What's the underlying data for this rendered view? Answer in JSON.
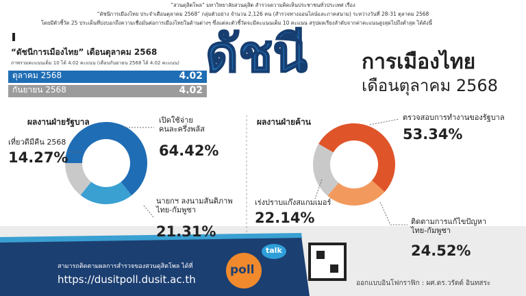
{
  "header": {
    "lines": [
      "“สวนดุสิตโพล” มหาวิทยาลัยสวนดุสิต สำรวจความคิดเห็นประชาชนทั่วประเทศ เรื่อง",
      "“ดัชนีการเมืองไทย ประจำเดือนตุลาคม 2568” กลุ่มตัวอย่าง จำนวน 2,126 คน (สำรวจทางออนไลน์และภาคสนาม) ระหว่างวันที่ 28-31 ตุลาคม 2568",
      "โดยมีตัวชี้วัด 25 ประเด็นที่บ่งบอกถึงความเชื่อมั่นต่อการเมืองไทยในด้านต่างๆ ซึ่งแต่ละตัวชี้วัดจะมีคะแนนเต็ม 10 คะแนน สรุปผลเรียงลำดับจากค่าคะแนนสูงสุดไปถึงต่ำสุด ได้ดังนี้"
    ]
  },
  "headline": {
    "big": "ดัชนี",
    "line1": "การเมืองไทย",
    "line2": "เดือนตุลาคม 2568"
  },
  "index": {
    "title": "“ดัชนีการเมืองไทย” เดือนตุลาคม 2568",
    "subtitle": "ภาพรวมคะแนนเต็ม 10 ได้ 4.02 คะแนน (เดือนกันยายน 2568 ได้ 4.02 คะแนน)",
    "rows": [
      [
        "ตุลาคม 2568",
        4.02
      ],
      [
        "กันยายน 2568",
        4.02
      ]
    ]
  },
  "chart_data": [
    {
      "type": "pie",
      "title": "ผลงานฝ่ายรัฐบาล",
      "categories": [
        "เปิดใช้จ่าย\nคนละครึ่งพลัส",
        "นายกฯ ลงนามสันติภาพ\nไทย-กัมพูชา",
        "เที่ยวดีมีคืน 2568"
      ],
      "values": [
        64.42,
        21.31,
        14.27
      ],
      "value_labels": [
        "64.42%",
        "21.31%",
        "14.27%"
      ],
      "colors": [
        "#1f6db4",
        "#3aa0d2",
        "#c9c9c9"
      ]
    },
    {
      "type": "pie",
      "title": "ผลงานฝ่ายค้าน",
      "categories": [
        "ตรวจสอบการทำงานของรัฐบาล",
        "ติดตามการแก้ไขปัญหา\nไทย-กัมพูชา",
        "เร่งปราบแก๊งสแกมเมอร์"
      ],
      "values": [
        53.34,
        24.52,
        22.14
      ],
      "value_labels": [
        "53.34%",
        "24.52%",
        "22.14%"
      ],
      "colors": [
        "#e0542a",
        "#f29a5e",
        "#c9c9c9"
      ]
    }
  ],
  "footer": {
    "follow": "สามารถติดตามผลการสำรวจของสวนดุสิตโพล ได้ที่",
    "url": "https://dusitpoll.dusit.ac.th",
    "credit": "ออกแบบอินโฟกราฟิก : ผศ.ดร.วรัตต์ อินทสระ",
    "logo_talk": "talk",
    "logo_poll": "poll"
  }
}
